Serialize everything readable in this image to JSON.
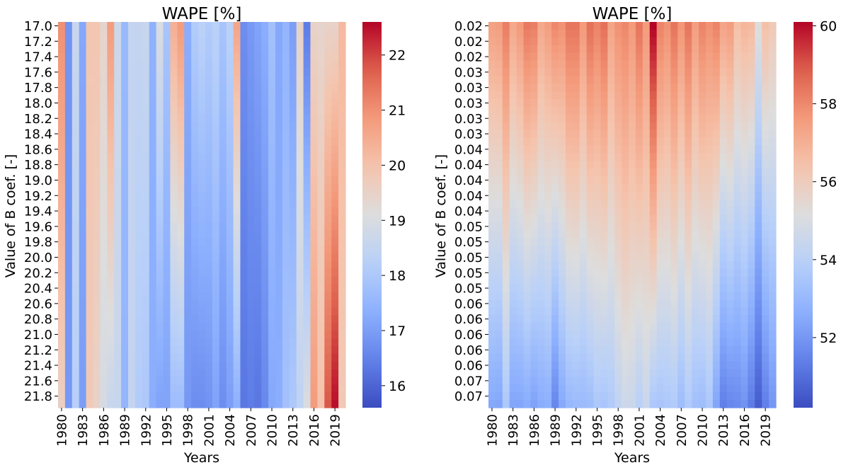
{
  "chart_data": [
    {
      "type": "heatmap",
      "title": "WAPE [%]",
      "xlabel": "Years",
      "ylabel": "Value of B coef. [-]",
      "x_ticklabels": [
        "1980",
        "1983",
        "1986",
        "1989",
        "1992",
        "1995",
        "1998",
        "2001",
        "2004",
        "2007",
        "2010",
        "2013",
        "2016",
        "2019"
      ],
      "x_tick_columns": [
        0,
        3,
        6,
        9,
        12,
        15,
        18,
        21,
        24,
        27,
        30,
        33,
        36,
        39
      ],
      "y_ticklabels": [
        "17.0",
        "17.2",
        "17.4",
        "17.6",
        "17.8",
        "18.0",
        "18.2",
        "18.4",
        "18.6",
        "18.8",
        "19.0",
        "19.2",
        "19.4",
        "19.6",
        "19.8",
        "20.0",
        "20.2",
        "20.4",
        "20.6",
        "20.8",
        "21.0",
        "21.2",
        "21.4",
        "21.6",
        "21.8"
      ],
      "years": [
        1980,
        2020
      ],
      "n_rows": 50,
      "b_range": [
        17.0,
        21.9
      ],
      "colorbar": {
        "min": 15.6,
        "max": 22.6,
        "ticks": [
          16,
          17,
          18,
          19,
          20,
          21,
          22
        ],
        "cmap": "coolwarm"
      },
      "column_wape_at_top": [
        21.0,
        16.8,
        18.6,
        17.2,
        19.9,
        19.9,
        19.4,
        20.8,
        18.7,
        17.6,
        18.5,
        18.5,
        18.6,
        17.4,
        19.0,
        17.9,
        20.4,
        20.8,
        17.3,
        18.1,
        18.3,
        18.1,
        18.3,
        17.9,
        18.3,
        20.6,
        16.7,
        16.9,
        17.1,
        17.3,
        17.8,
        17.2,
        17.5,
        17.0,
        19.5,
        16.4,
        19.5,
        19.4,
        19.5,
        19.5,
        20.2
      ],
      "column_wape_at_bottom": [
        19.6,
        16.9,
        18.2,
        17.0,
        19.8,
        19.5,
        18.9,
        18.6,
        18.6,
        17.5,
        18.5,
        18.1,
        18.0,
        17.3,
        17.1,
        17.1,
        17.7,
        17.7,
        16.9,
        16.7,
        16.7,
        16.8,
        17.1,
        16.7,
        17.0,
        17.4,
        16.3,
        16.4,
        16.3,
        16.6,
        17.2,
        17.3,
        17.8,
        18.0,
        18.4,
        19.0,
        20.8,
        20.0,
        21.8,
        22.5,
        19.8
      ]
    },
    {
      "type": "heatmap",
      "title": "WAPE [%]",
      "xlabel": "Years",
      "ylabel": "Value of B coef. [-]",
      "x_ticklabels": [
        "1980",
        "1983",
        "1986",
        "1989",
        "1992",
        "1995",
        "1998",
        "2001",
        "2004",
        "2007",
        "2010",
        "2013",
        "2016",
        "2019"
      ],
      "x_tick_columns": [
        0,
        3,
        6,
        9,
        12,
        15,
        18,
        21,
        24,
        27,
        30,
        33,
        36,
        39
      ],
      "y_ticklabels": [
        "0.02",
        "0.02",
        "0.02",
        "0.03",
        "0.03",
        "0.03",
        "0.03",
        "0.03",
        "0.04",
        "0.04",
        "0.04",
        "0.04",
        "0.04",
        "0.05",
        "0.05",
        "0.05",
        "0.05",
        "0.05",
        "0.06",
        "0.06",
        "0.06",
        "0.06",
        "0.06",
        "0.07",
        "0.07"
      ],
      "years": [
        1980,
        2020
      ],
      "n_rows": 50,
      "colorbar": {
        "min": 50.2,
        "max": 60.1,
        "ticks": [
          52,
          54,
          56,
          58,
          60
        ],
        "cmap": "coolwarm"
      },
      "column_wape_at_top": [
        57.4,
        57.5,
        58.2,
        57.2,
        57.6,
        58.3,
        58.2,
        57.2,
        57.5,
        58.0,
        57.8,
        58.4,
        58.4,
        57.6,
        58.5,
        58.1,
        58.5,
        57.3,
        57.8,
        58.0,
        57.6,
        58.4,
        57.6,
        60.1,
        58.1,
        57.8,
        58.4,
        57.7,
        58.4,
        57.5,
        58.1,
        57.8,
        58.1,
        57.3,
        57.5,
        56.5,
        56.8,
        56.7,
        55.2,
        56.5,
        56.1
      ],
      "column_wape_at_bottom": [
        52.5,
        52.4,
        53.6,
        52.4,
        52.4,
        52.6,
        52.3,
        52.6,
        52.7,
        51.6,
        52.5,
        53.0,
        53.1,
        53.1,
        53.2,
        53.6,
        53.5,
        53.7,
        54.2,
        54.6,
        54.5,
        54.0,
        54.5,
        53.6,
        53.5,
        53.6,
        53.7,
        53.2,
        53.7,
        53.3,
        53.2,
        53.6,
        52.4,
        51.4,
        51.6,
        51.7,
        51.9,
        51.3,
        50.6,
        51.4,
        52.0
      ]
    }
  ]
}
